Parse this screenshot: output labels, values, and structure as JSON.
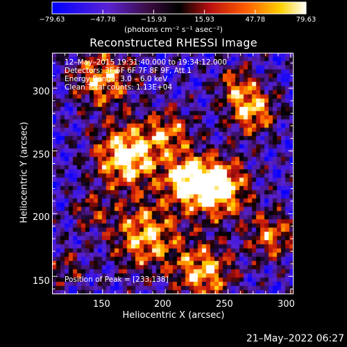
{
  "colorbar": {
    "tick_labels": [
      "−79.63",
      "−47.78",
      "−15.93",
      "15.93",
      "47.78",
      "79.63"
    ],
    "range": [
      -79.63,
      79.63
    ],
    "units": "(photons cm⁻² s⁻¹ asec⁻²)"
  },
  "title": "Reconstructed RHESSI Image",
  "info": {
    "time_range": "12–May–2015 19:31:40.000 to 19:34:12.000",
    "detectors": "Detectors: 3F 5F 6F 7F 8F 9F, Att 1",
    "energy_range": "Energy Range: 3.0 – 6.0 keV",
    "clean_counts": "Clean     Total counts: 1.13E+04",
    "peak": "Position of Peak = [233,138]"
  },
  "axes": {
    "xlabel": "Heliocentric X (arcsec)",
    "ylabel": "Heliocentric Y (arcsec)",
    "x_ticks": [
      "150",
      "200",
      "250",
      "300"
    ],
    "y_ticks": [
      "150",
      "200",
      "250",
      "300"
    ],
    "xlim": [
      110,
      302
    ],
    "ylim": [
      136,
      328
    ]
  },
  "footer": "21–May–2022 06:27",
  "colors": {
    "background": "#000000",
    "axis": "#ffffff"
  }
}
